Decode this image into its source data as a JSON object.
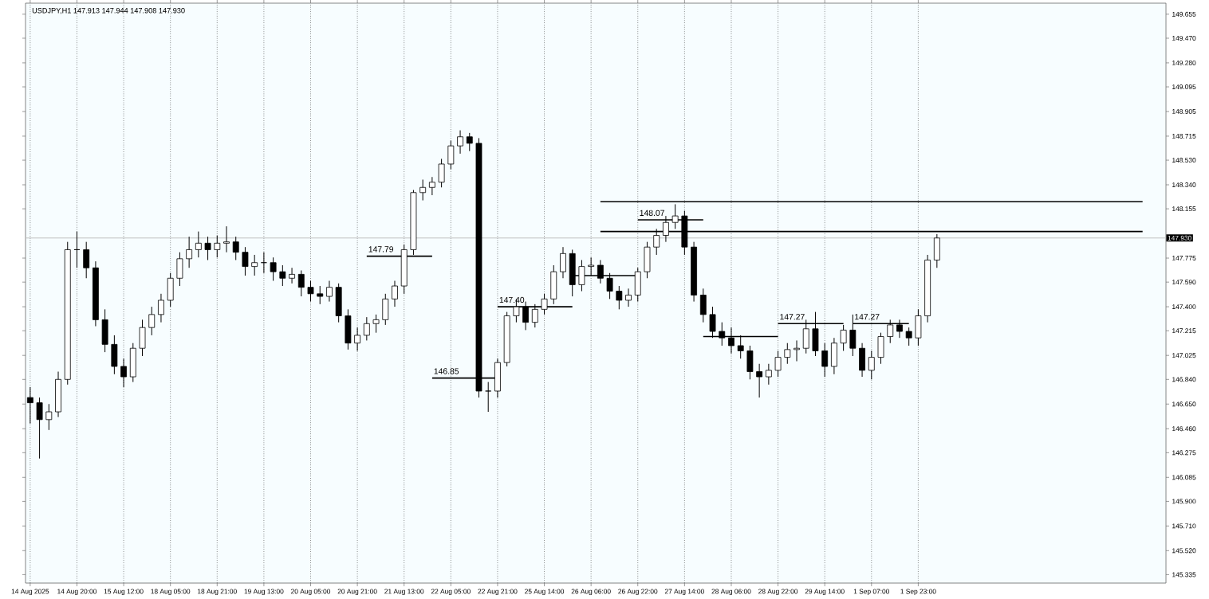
{
  "chart_data": {
    "type": "candlestick",
    "annotations": [
      "USDJPY,H1 147.913 147.944 147.908 147.930"
    ],
    "categories": [
      "14 Aug 2025",
      null,
      null,
      null,
      null,
      "14 Aug 20:00",
      null,
      null,
      null,
      null,
      "15 Aug 12:00",
      null,
      null,
      null,
      null,
      "18 Aug 05:00",
      null,
      null,
      null,
      null,
      "18 Aug 21:00",
      null,
      null,
      null,
      null,
      "19 Aug 13:00",
      null,
      null,
      null,
      null,
      "20 Aug 05:00",
      null,
      null,
      null,
      null,
      "20 Aug 21:00",
      null,
      null,
      null,
      null,
      "21 Aug 13:00",
      null,
      null,
      null,
      null,
      "22 Aug 05:00",
      null,
      null,
      null,
      null,
      "22 Aug 21:00",
      null,
      null,
      null,
      null,
      "25 Aug 14:00",
      null,
      null,
      null,
      null,
      "26 Aug 06:00",
      null,
      null,
      null,
      null,
      "26 Aug 22:00",
      null,
      null,
      null,
      null,
      "27 Aug 14:00",
      null,
      null,
      null,
      null,
      "28 Aug 06:00",
      null,
      null,
      null,
      null,
      "28 Aug 22:00",
      null,
      null,
      null,
      null,
      "29 Aug 14:00",
      null,
      null,
      null,
      null,
      "1 Sep 07:00",
      null,
      null,
      null,
      null,
      "1 Sep 23:00",
      null,
      null,
      null,
      null,
      null,
      null,
      null,
      null,
      null,
      null,
      null,
      null,
      null,
      null,
      null,
      null,
      null,
      null,
      null,
      null,
      null,
      null,
      null,
      null,
      null,
      null
    ],
    "series": [
      {
        "color": "#000000",
        "ohlc": [
          [
            146.7,
            146.78,
            146.5,
            146.66
          ],
          [
            146.66,
            146.7,
            146.23,
            146.53
          ],
          [
            146.53,
            146.65,
            146.45,
            146.59
          ],
          [
            146.59,
            146.9,
            146.55,
            146.84
          ],
          [
            146.84,
            147.9,
            146.8,
            147.84
          ],
          [
            147.84,
            147.98,
            147.7,
            147.84
          ],
          [
            147.84,
            147.9,
            147.62,
            147.7
          ],
          [
            147.7,
            147.75,
            147.25,
            147.3
          ],
          [
            147.3,
            147.38,
            147.05,
            147.11
          ],
          [
            147.11,
            147.18,
            146.88,
            146.94
          ],
          [
            146.94,
            147.0,
            146.78,
            146.86
          ],
          [
            146.86,
            147.12,
            146.82,
            147.08
          ],
          [
            147.08,
            147.3,
            147.02,
            147.24
          ],
          [
            147.24,
            147.4,
            147.18,
            147.34
          ],
          [
            147.34,
            147.5,
            147.28,
            147.45
          ],
          [
            147.45,
            147.66,
            147.4,
            147.62
          ],
          [
            147.62,
            147.82,
            147.56,
            147.77
          ],
          [
            147.77,
            147.94,
            147.7,
            147.84
          ],
          [
            147.84,
            147.98,
            147.78,
            147.89
          ],
          [
            147.89,
            147.94,
            147.76,
            147.84
          ],
          [
            147.84,
            147.95,
            147.78,
            147.89
          ],
          [
            147.89,
            148.02,
            147.82,
            147.9
          ],
          [
            147.9,
            147.94,
            147.76,
            147.82
          ],
          [
            147.82,
            147.86,
            147.64,
            147.71
          ],
          [
            147.71,
            147.8,
            147.64,
            147.74
          ],
          [
            147.74,
            147.82,
            147.66,
            147.74
          ],
          [
            147.74,
            147.78,
            147.6,
            147.67
          ],
          [
            147.67,
            147.72,
            147.56,
            147.62
          ],
          [
            147.62,
            147.7,
            147.58,
            147.65
          ],
          [
            147.65,
            147.68,
            147.48,
            147.55
          ],
          [
            147.55,
            147.6,
            147.44,
            147.5
          ],
          [
            147.5,
            147.56,
            147.42,
            147.48
          ],
          [
            147.48,
            147.6,
            147.44,
            147.55
          ],
          [
            147.55,
            147.58,
            147.28,
            147.33
          ],
          [
            147.33,
            147.38,
            147.07,
            147.12
          ],
          [
            147.12,
            147.24,
            147.06,
            147.18
          ],
          [
            147.18,
            147.32,
            147.14,
            147.27
          ],
          [
            147.27,
            147.34,
            147.2,
            147.3
          ],
          [
            147.3,
            147.5,
            147.26,
            147.46
          ],
          [
            147.46,
            147.6,
            147.4,
            147.56
          ],
          [
            147.56,
            147.88,
            147.5,
            147.84
          ],
          [
            147.84,
            148.3,
            147.8,
            148.28
          ],
          [
            148.28,
            148.38,
            148.22,
            148.32
          ],
          [
            148.32,
            148.4,
            148.26,
            148.36
          ],
          [
            148.36,
            148.54,
            148.32,
            148.5
          ],
          [
            148.5,
            148.68,
            148.46,
            148.64
          ],
          [
            148.64,
            148.76,
            148.58,
            148.71
          ],
          [
            148.71,
            148.74,
            148.6,
            148.66
          ],
          [
            148.66,
            148.7,
            146.7,
            146.75
          ],
          [
            146.75,
            146.82,
            146.59,
            146.75
          ],
          [
            146.75,
            147.0,
            146.7,
            146.97
          ],
          [
            146.97,
            147.36,
            146.94,
            147.33
          ],
          [
            147.33,
            147.46,
            147.28,
            147.4
          ],
          [
            147.4,
            147.44,
            147.22,
            147.28
          ],
          [
            147.28,
            147.42,
            147.24,
            147.38
          ],
          [
            147.38,
            147.5,
            147.34,
            147.46
          ],
          [
            147.46,
            147.72,
            147.42,
            147.67
          ],
          [
            147.67,
            147.86,
            147.62,
            147.81
          ],
          [
            147.81,
            147.84,
            147.48,
            147.57
          ],
          [
            147.57,
            147.76,
            147.52,
            147.71
          ],
          [
            147.71,
            147.78,
            147.64,
            147.72
          ],
          [
            147.72,
            147.76,
            147.58,
            147.62
          ],
          [
            147.62,
            147.66,
            147.46,
            147.52
          ],
          [
            147.52,
            147.56,
            147.38,
            147.45
          ],
          [
            147.45,
            147.54,
            147.4,
            147.49
          ],
          [
            147.49,
            147.7,
            147.44,
            147.67
          ],
          [
            147.67,
            147.9,
            147.62,
            147.86
          ],
          [
            147.86,
            148.0,
            147.8,
            147.95
          ],
          [
            147.95,
            148.1,
            147.9,
            148.05
          ],
          [
            148.05,
            148.19,
            148.0,
            148.1
          ],
          [
            148.1,
            148.14,
            147.8,
            147.86
          ],
          [
            147.86,
            147.9,
            147.44,
            147.49
          ],
          [
            147.49,
            147.54,
            147.28,
            147.34
          ],
          [
            147.34,
            147.4,
            147.16,
            147.21
          ],
          [
            147.21,
            147.28,
            147.1,
            147.16
          ],
          [
            147.16,
            147.24,
            147.04,
            147.1
          ],
          [
            147.1,
            147.18,
            147.0,
            147.06
          ],
          [
            147.06,
            147.1,
            146.84,
            146.9
          ],
          [
            146.9,
            146.96,
            146.7,
            146.86
          ],
          [
            146.86,
            146.96,
            146.8,
            146.91
          ],
          [
            146.91,
            147.06,
            146.86,
            147.01
          ],
          [
            147.01,
            147.12,
            146.96,
            147.07
          ],
          [
            147.07,
            147.14,
            146.98,
            147.08
          ],
          [
            147.08,
            147.3,
            147.04,
            147.23
          ],
          [
            147.23,
            147.36,
            147.02,
            147.06
          ],
          [
            147.06,
            147.12,
            146.86,
            146.94
          ],
          [
            146.94,
            147.16,
            146.88,
            147.12
          ],
          [
            147.12,
            147.26,
            147.06,
            147.22
          ],
          [
            147.22,
            147.34,
            147.02,
            147.08
          ],
          [
            147.08,
            147.12,
            146.86,
            146.91
          ],
          [
            146.91,
            147.06,
            146.84,
            147.01
          ],
          [
            147.01,
            147.2,
            146.96,
            147.17
          ],
          [
            147.17,
            147.3,
            147.12,
            147.26
          ],
          [
            147.26,
            147.3,
            147.16,
            147.21
          ],
          [
            147.21,
            147.24,
            147.1,
            147.16
          ],
          [
            147.16,
            147.38,
            147.1,
            147.33
          ],
          [
            147.33,
            147.8,
            147.28,
            147.76
          ],
          [
            147.76,
            147.96,
            147.7,
            147.93
          ],
          null,
          null,
          null,
          null,
          null,
          null,
          null,
          null,
          null,
          null,
          null,
          null,
          null,
          null,
          null,
          null,
          null,
          null,
          null,
          null,
          null,
          null,
          null,
          null
        ]
      },
      {
        "type": "line",
        "name": "147.79",
        "color": "#000000",
        "values": [
          null,
          null,
          null,
          null,
          null,
          null,
          null,
          null,
          null,
          null,
          null,
          null,
          null,
          null,
          null,
          null,
          null,
          null,
          null,
          null,
          null,
          null,
          null,
          null,
          null,
          null,
          null,
          null,
          null,
          null,
          null,
          null,
          null,
          null,
          null,
          null,
          147.79,
          147.79,
          147.79,
          147.79,
          147.79,
          147.79,
          147.79,
          147.79,
          null,
          null,
          null,
          null,
          null,
          null,
          null,
          null,
          null,
          null,
          null,
          null,
          null,
          null,
          null,
          null,
          null,
          null,
          null,
          null,
          null,
          null,
          null,
          null,
          null,
          null,
          null,
          null,
          null,
          null,
          null,
          null,
          null,
          null,
          null,
          null,
          null,
          null,
          null,
          null,
          null,
          null,
          null,
          null,
          null,
          null,
          null,
          null,
          null,
          null,
          null,
          null,
          null,
          null,
          null,
          null,
          null,
          null,
          null,
          null,
          null,
          null,
          null,
          null,
          null,
          null,
          null,
          null,
          null,
          null,
          null,
          null,
          null,
          null,
          null,
          null,
          null,
          null
        ]
      },
      {
        "type": "line",
        "name": "146.85",
        "color": "#000000",
        "values": [
          null,
          null,
          null,
          null,
          null,
          null,
          null,
          null,
          null,
          null,
          null,
          null,
          null,
          null,
          null,
          null,
          null,
          null,
          null,
          null,
          null,
          null,
          null,
          null,
          null,
          null,
          null,
          null,
          null,
          null,
          null,
          null,
          null,
          null,
          null,
          null,
          null,
          null,
          null,
          null,
          null,
          null,
          null,
          146.85,
          146.85,
          146.85,
          146.85,
          146.85,
          146.85,
          146.85,
          146.85,
          null,
          null,
          null,
          null,
          null,
          null,
          null,
          null,
          null,
          null,
          null,
          null,
          null,
          null,
          null,
          null,
          null,
          null,
          null,
          null,
          null,
          null,
          null,
          null,
          null,
          null,
          null,
          null,
          null,
          null,
          null,
          null,
          null,
          null,
          null,
          null,
          null,
          null,
          null,
          null,
          null,
          null,
          null,
          null,
          null,
          null,
          null,
          null,
          null,
          null,
          null,
          null,
          null,
          null,
          null,
          null,
          null,
          null,
          null,
          null,
          null,
          null,
          null,
          null,
          null,
          null,
          null,
          null,
          null,
          null,
          null
        ]
      },
      {
        "type": "line",
        "name": "147.40",
        "color": "#000000",
        "values": [
          null,
          null,
          null,
          null,
          null,
          null,
          null,
          null,
          null,
          null,
          null,
          null,
          null,
          null,
          null,
          null,
          null,
          null,
          null,
          null,
          null,
          null,
          null,
          null,
          null,
          null,
          null,
          null,
          null,
          null,
          null,
          null,
          null,
          null,
          null,
          null,
          null,
          null,
          null,
          null,
          null,
          null,
          null,
          null,
          null,
          null,
          null,
          null,
          null,
          null,
          147.4,
          147.4,
          147.4,
          147.4,
          147.4,
          147.4,
          147.4,
          147.4,
          147.4,
          null,
          null,
          null,
          null,
          null,
          null,
          null,
          null,
          null,
          null,
          null,
          null,
          null,
          null,
          null,
          null,
          null,
          null,
          null,
          null,
          null,
          null,
          null,
          null,
          null,
          null,
          null,
          null,
          null,
          null,
          null,
          null,
          null,
          null,
          null,
          null,
          null,
          null,
          null,
          null,
          null,
          null,
          null,
          null,
          null,
          null,
          null,
          null,
          null,
          null,
          null,
          null,
          null,
          null,
          null,
          null,
          null,
          null,
          null,
          null,
          null,
          null,
          null
        ]
      },
      {
        "type": "line",
        "color": "#000000",
        "values": [
          null,
          null,
          null,
          null,
          null,
          null,
          null,
          null,
          null,
          null,
          null,
          null,
          null,
          null,
          null,
          null,
          null,
          null,
          null,
          null,
          null,
          null,
          null,
          null,
          null,
          null,
          null,
          null,
          null,
          null,
          null,
          null,
          null,
          null,
          null,
          null,
          null,
          null,
          null,
          null,
          null,
          null,
          null,
          null,
          null,
          null,
          null,
          null,
          null,
          null,
          null,
          null,
          null,
          null,
          null,
          null,
          null,
          null,
          147.64,
          147.64,
          147.64,
          147.64,
          147.64,
          147.64,
          147.64,
          147.64,
          null,
          null,
          null,
          null,
          null,
          null,
          null,
          null,
          null,
          null,
          null,
          null,
          null,
          null,
          null,
          null,
          null,
          null,
          null,
          null,
          null,
          null,
          null,
          null,
          null,
          null,
          null,
          null,
          null,
          null,
          null,
          null,
          null,
          null,
          null,
          null,
          null,
          null,
          null,
          null,
          null,
          null,
          null,
          null,
          null,
          null,
          null,
          null,
          null,
          null,
          null,
          null,
          null,
          null,
          null,
          null
        ]
      },
      {
        "type": "line",
        "name": "148.07",
        "color": "#000000",
        "values": [
          null,
          null,
          null,
          null,
          null,
          null,
          null,
          null,
          null,
          null,
          null,
          null,
          null,
          null,
          null,
          null,
          null,
          null,
          null,
          null,
          null,
          null,
          null,
          null,
          null,
          null,
          null,
          null,
          null,
          null,
          null,
          null,
          null,
          null,
          null,
          null,
          null,
          null,
          null,
          null,
          null,
          null,
          null,
          null,
          null,
          null,
          null,
          null,
          null,
          null,
          null,
          null,
          null,
          null,
          null,
          null,
          null,
          null,
          null,
          null,
          null,
          null,
          null,
          null,
          null,
          148.07,
          148.07,
          148.07,
          148.07,
          148.07,
          148.07,
          148.07,
          148.07,
          null,
          null,
          null,
          null,
          null,
          null,
          null,
          null,
          null,
          null,
          null,
          null,
          null,
          null,
          null,
          null,
          null,
          null,
          null,
          null,
          null,
          null,
          null,
          null,
          null,
          null,
          null,
          null,
          null,
          null,
          null,
          null,
          null,
          null,
          null,
          null,
          null,
          null,
          null,
          null,
          null,
          null,
          null,
          null,
          null,
          null,
          null,
          null,
          null
        ]
      },
      {
        "type": "line",
        "color": "#000000",
        "values": [
          null,
          null,
          null,
          null,
          null,
          null,
          null,
          null,
          null,
          null,
          null,
          null,
          null,
          null,
          null,
          null,
          null,
          null,
          null,
          null,
          null,
          null,
          null,
          null,
          null,
          null,
          null,
          null,
          null,
          null,
          null,
          null,
          null,
          null,
          null,
          null,
          null,
          null,
          null,
          null,
          null,
          null,
          null,
          null,
          null,
          null,
          null,
          null,
          null,
          null,
          null,
          null,
          null,
          null,
          null,
          null,
          null,
          null,
          null,
          null,
          null,
          null,
          null,
          null,
          null,
          null,
          null,
          null,
          null,
          null,
          null,
          null,
          147.17,
          147.17,
          147.17,
          147.17,
          147.17,
          147.17,
          147.17,
          147.17,
          147.17,
          null,
          null,
          null,
          null,
          null,
          null,
          null,
          null,
          null,
          null,
          null,
          null,
          null,
          null,
          null,
          null,
          null,
          null,
          null,
          null,
          null,
          null,
          null,
          null,
          null,
          null,
          null,
          null,
          null,
          null,
          null,
          null,
          null,
          null,
          null,
          null,
          null,
          null,
          null,
          null,
          null
        ]
      },
      {
        "type": "line",
        "name": "147.27",
        "color": "#000000",
        "values": [
          null,
          null,
          null,
          null,
          null,
          null,
          null,
          null,
          null,
          null,
          null,
          null,
          null,
          null,
          null,
          null,
          null,
          null,
          null,
          null,
          null,
          null,
          null,
          null,
          null,
          null,
          null,
          null,
          null,
          null,
          null,
          null,
          null,
          null,
          null,
          null,
          null,
          null,
          null,
          null,
          null,
          null,
          null,
          null,
          null,
          null,
          null,
          null,
          null,
          null,
          null,
          null,
          null,
          null,
          null,
          null,
          null,
          null,
          null,
          null,
          null,
          null,
          null,
          null,
          null,
          null,
          null,
          null,
          null,
          null,
          null,
          null,
          null,
          null,
          null,
          null,
          null,
          null,
          null,
          null,
          147.27,
          147.27,
          147.27,
          147.27,
          147.27,
          147.27,
          147.27,
          147.27,
          null,
          null,
          null,
          null,
          null,
          null,
          null,
          null,
          null,
          null,
          null,
          null,
          null,
          null,
          null,
          null,
          null,
          null,
          null,
          null,
          null,
          null,
          null,
          null,
          null,
          null,
          null,
          null,
          null,
          null,
          null,
          null,
          null,
          null
        ]
      },
      {
        "type": "line",
        "name": "147.27",
        "color": "#000000",
        "values": [
          null,
          null,
          null,
          null,
          null,
          null,
          null,
          null,
          null,
          null,
          null,
          null,
          null,
          null,
          null,
          null,
          null,
          null,
          null,
          null,
          null,
          null,
          null,
          null,
          null,
          null,
          null,
          null,
          null,
          null,
          null,
          null,
          null,
          null,
          null,
          null,
          null,
          null,
          null,
          null,
          null,
          null,
          null,
          null,
          null,
          null,
          null,
          null,
          null,
          null,
          null,
          null,
          null,
          null,
          null,
          null,
          null,
          null,
          null,
          null,
          null,
          null,
          null,
          null,
          null,
          null,
          null,
          null,
          null,
          null,
          null,
          null,
          null,
          null,
          null,
          null,
          null,
          null,
          null,
          null,
          null,
          null,
          null,
          null,
          null,
          null,
          null,
          null,
          147.27,
          147.27,
          147.27,
          147.27,
          147.27,
          147.27,
          147.27,
          null,
          null,
          null,
          null,
          null,
          null,
          null,
          null,
          null,
          null,
          null,
          null,
          null,
          null,
          null,
          null,
          null,
          null,
          null,
          null,
          null,
          null,
          null,
          null,
          null,
          null,
          null
        ]
      },
      {
        "type": "line",
        "color": "#000000",
        "values": [
          null,
          null,
          null,
          null,
          null,
          null,
          null,
          null,
          null,
          null,
          null,
          null,
          null,
          null,
          null,
          null,
          null,
          null,
          null,
          null,
          null,
          null,
          null,
          null,
          null,
          null,
          null,
          null,
          null,
          null,
          null,
          null,
          null,
          null,
          null,
          null,
          null,
          null,
          null,
          null,
          null,
          null,
          null,
          null,
          null,
          null,
          null,
          null,
          null,
          null,
          null,
          null,
          null,
          null,
          null,
          null,
          null,
          null,
          null,
          null,
          null,
          148.21,
          148.21,
          148.21,
          148.21,
          148.21,
          148.21,
          148.21,
          148.21,
          148.21,
          148.21,
          148.21,
          148.21,
          148.21,
          148.21,
          148.21,
          148.21,
          148.21,
          148.21,
          148.21,
          148.21,
          148.21,
          148.21,
          148.21,
          148.21,
          148.21,
          148.21,
          148.21,
          148.21,
          148.21,
          148.21,
          148.21,
          148.21,
          148.21,
          148.21,
          148.21,
          148.21,
          148.21,
          148.21,
          148.21,
          148.21,
          148.21,
          148.21,
          148.21,
          148.21,
          148.21,
          148.21,
          148.21,
          148.21,
          148.21,
          148.21,
          148.21,
          148.21,
          148.21,
          148.21,
          148.21,
          148.21,
          148.21,
          148.21,
          148.21,
          null,
          null
        ]
      },
      {
        "type": "line",
        "color": "#000000",
        "values": [
          null,
          null,
          null,
          null,
          null,
          null,
          null,
          null,
          null,
          null,
          null,
          null,
          null,
          null,
          null,
          null,
          null,
          null,
          null,
          null,
          null,
          null,
          null,
          null,
          null,
          null,
          null,
          null,
          null,
          null,
          null,
          null,
          null,
          null,
          null,
          null,
          null,
          null,
          null,
          null,
          null,
          null,
          null,
          null,
          null,
          null,
          null,
          null,
          null,
          null,
          null,
          null,
          null,
          null,
          null,
          null,
          null,
          null,
          null,
          null,
          null,
          147.98,
          147.98,
          147.98,
          147.98,
          147.98,
          147.98,
          147.98,
          147.98,
          147.98,
          147.98,
          147.98,
          147.98,
          147.98,
          147.98,
          147.98,
          147.98,
          147.98,
          147.98,
          147.98,
          147.98,
          147.98,
          147.98,
          147.98,
          147.98,
          147.98,
          147.98,
          147.98,
          147.98,
          147.98,
          147.98,
          147.98,
          147.98,
          147.98,
          147.98,
          147.98,
          147.98,
          147.98,
          147.98,
          147.98,
          147.98,
          147.98,
          147.98,
          147.98,
          147.98,
          147.98,
          147.98,
          147.98,
          147.98,
          147.98,
          147.98,
          147.98,
          147.98,
          147.98,
          147.98,
          147.98,
          147.98,
          147.98,
          147.98,
          147.98,
          null,
          null
        ]
      }
    ],
    "ref_lines": [
      {
        "axis": "y",
        "value": 147.93,
        "label": "147.930",
        "color": "#c0c0c0"
      }
    ],
    "ylim": [
      145.27,
      149.74
    ],
    "yticks": [
      {
        "value": 149.655,
        "label": "149.655"
      },
      {
        "value": 149.47,
        "label": "149.470"
      },
      {
        "value": 149.28,
        "label": "149.280"
      },
      {
        "value": 149.095,
        "label": "149.095"
      },
      {
        "value": 148.905,
        "label": "148.905"
      },
      {
        "value": 148.715,
        "label": "148.715"
      },
      {
        "value": 148.53,
        "label": "148.530"
      },
      {
        "value": 148.34,
        "label": "148.340"
      },
      {
        "value": 148.155,
        "label": "148.155"
      },
      {
        "value": 147.775,
        "label": "147.775"
      },
      {
        "value": 147.59,
        "label": "147.590"
      },
      {
        "value": 147.4,
        "label": "147.400"
      },
      {
        "value": 147.215,
        "label": "147.215"
      },
      {
        "value": 147.025,
        "label": "147.025"
      },
      {
        "value": 146.84,
        "label": "146.840"
      },
      {
        "value": 146.65,
        "label": "146.650"
      },
      {
        "value": 146.46,
        "label": "146.460"
      },
      {
        "value": 146.275,
        "label": "146.275"
      },
      {
        "value": 146.085,
        "label": "146.085"
      },
      {
        "value": 145.9,
        "label": "145.900"
      },
      {
        "value": 145.71,
        "label": "145.710"
      },
      {
        "value": 145.52,
        "label": "145.520"
      },
      {
        "value": 145.335,
        "label": "145.335"
      }
    ],
    "grid": "x"
  }
}
